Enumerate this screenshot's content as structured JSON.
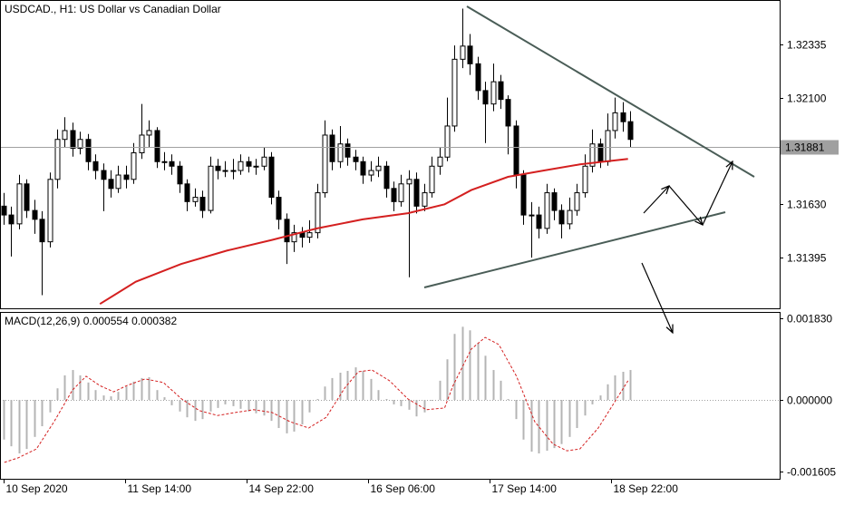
{
  "chart_data": [
    {
      "type": "candlestick",
      "title": "USDCAD., H1:  US Dollar vs Canadian Dollar",
      "up_color": "#ffffff",
      "down_color": "#000000",
      "wick_color": "#000000",
      "xlim": [
        -0.474,
        101.54
      ],
      "xticks": [
        {
          "value": 0,
          "label": "10 Sep 2020"
        },
        {
          "value": 15.9,
          "label": "11 Sep 14:00"
        },
        {
          "value": 31.8,
          "label": "14 Sep 22:00"
        },
        {
          "value": 47.7,
          "label": "16 Sep 06:00"
        },
        {
          "value": 63.6,
          "label": "17 Sep 14:00"
        },
        {
          "value": 79.5,
          "label": "18 Sep 22:00"
        }
      ],
      "ylim": [
        1.31172,
        1.32526
      ],
      "yticks": [
        1.32335,
        {
          "value": 1.321,
          "label": "1.32100"
        },
        {
          "value": 1.3163,
          "label": "1.31630"
        },
        1.31395
      ],
      "last_price": 1.31881,
      "last_price_color": "#a0a0a0",
      "candles": [
        [
          1.31622,
          1.3168,
          1.3154,
          1.31583
        ],
        [
          1.31583,
          1.3162,
          1.314,
          1.31544
        ],
        [
          1.31544,
          1.3176,
          1.3152,
          1.3172
        ],
        [
          1.3172,
          1.3174,
          1.3157,
          1.31603
        ],
        [
          1.31603,
          1.3165,
          1.315,
          1.31564
        ],
        [
          1.31564,
          1.316,
          1.3123,
          1.31465
        ],
        [
          1.31465,
          1.3177,
          1.3144,
          1.3174
        ],
        [
          1.3174,
          1.3196,
          1.317,
          1.31916
        ],
        [
          1.31916,
          1.32014,
          1.3188,
          1.31955
        ],
        [
          1.31955,
          1.3199,
          1.3184,
          1.31877
        ],
        [
          1.31877,
          1.3195,
          1.3185,
          1.31916
        ],
        [
          1.31916,
          1.3194,
          1.3178,
          1.31818
        ],
        [
          1.31818,
          1.3185,
          1.3174,
          1.31779
        ],
        [
          1.31779,
          1.3181,
          1.316,
          1.3174
        ],
        [
          1.3174,
          1.3178,
          1.3166,
          1.317
        ],
        [
          1.317,
          1.318,
          1.3168,
          1.31759
        ],
        [
          1.31759,
          1.318,
          1.317,
          1.3174
        ],
        [
          1.3174,
          1.319,
          1.3172,
          1.31857
        ],
        [
          1.31857,
          1.32072,
          1.3183,
          1.31935
        ],
        [
          1.31935,
          1.32,
          1.3188,
          1.31955
        ],
        [
          1.31955,
          1.3197,
          1.3179,
          1.31818
        ],
        [
          1.31818,
          1.3186,
          1.3178,
          1.31818
        ],
        [
          1.31818,
          1.3185,
          1.3176,
          1.31798
        ],
        [
          1.31798,
          1.3182,
          1.3168,
          1.3172
        ],
        [
          1.3172,
          1.3174,
          1.316,
          1.31642
        ],
        [
          1.31642,
          1.317,
          1.3162,
          1.31661
        ],
        [
          1.31661,
          1.3169,
          1.3157,
          1.31603
        ],
        [
          1.31603,
          1.3184,
          1.3159,
          1.31798
        ],
        [
          1.31798,
          1.3183,
          1.3174,
          1.31779
        ],
        [
          1.31779,
          1.3182,
          1.3175,
          1.31779
        ],
        [
          1.31779,
          1.3183,
          1.3174,
          1.31779
        ],
        [
          1.31779,
          1.3185,
          1.3176,
          1.31818
        ],
        [
          1.31818,
          1.3184,
          1.3177,
          1.31798
        ],
        [
          1.31798,
          1.3183,
          1.3176,
          1.31798
        ],
        [
          1.31798,
          1.3188,
          1.3178,
          1.31838
        ],
        [
          1.31838,
          1.3186,
          1.3163,
          1.31661
        ],
        [
          1.31661,
          1.3169,
          1.3152,
          1.31564
        ],
        [
          1.31564,
          1.3159,
          1.31367,
          1.31465
        ],
        [
          1.31465,
          1.3154,
          1.3142,
          1.31505
        ],
        [
          1.31505,
          1.3153,
          1.3144,
          1.31485
        ],
        [
          1.31485,
          1.3156,
          1.3146,
          1.31505
        ],
        [
          1.31505,
          1.3172,
          1.3148,
          1.31681
        ],
        [
          1.31681,
          1.32,
          1.3166,
          1.31935
        ],
        [
          1.31935,
          1.3196,
          1.3178,
          1.31818
        ],
        [
          1.31818,
          1.31975,
          1.3179,
          1.31896
        ],
        [
          1.31896,
          1.3192,
          1.318,
          1.31838
        ],
        [
          1.31838,
          1.3187,
          1.3178,
          1.31818
        ],
        [
          1.31818,
          1.3184,
          1.3172,
          1.31759
        ],
        [
          1.31759,
          1.3182,
          1.3173,
          1.31779
        ],
        [
          1.31779,
          1.3184,
          1.3175,
          1.31798
        ],
        [
          1.31798,
          1.3182,
          1.3166,
          1.317
        ],
        [
          1.317,
          1.3173,
          1.316,
          1.31642
        ],
        [
          1.31642,
          1.3176,
          1.3162,
          1.3172
        ],
        [
          1.3172,
          1.3178,
          1.31309,
          1.3174
        ],
        [
          1.3174,
          1.3177,
          1.3159,
          1.31622
        ],
        [
          1.31622,
          1.3172,
          1.316,
          1.31681
        ],
        [
          1.31681,
          1.3184,
          1.3166,
          1.31798
        ],
        [
          1.31798,
          1.3188,
          1.3176,
          1.31838
        ],
        [
          1.31838,
          1.321,
          1.3182,
          1.31975
        ],
        [
          1.31975,
          1.3233,
          1.3195,
          1.32269
        ],
        [
          1.32269,
          1.32492,
          1.3223,
          1.32327
        ],
        [
          1.32327,
          1.3238,
          1.322,
          1.32249
        ],
        [
          1.32249,
          1.3228,
          1.3209,
          1.32131
        ],
        [
          1.32131,
          1.3217,
          1.319,
          1.32072
        ],
        [
          1.32072,
          1.3225,
          1.3204,
          1.3217
        ],
        [
          1.3217,
          1.322,
          1.3205,
          1.32092
        ],
        [
          1.32092,
          1.3211,
          1.3185,
          1.31975
        ],
        [
          1.31975,
          1.32,
          1.317,
          1.31759
        ],
        [
          1.31759,
          1.3178,
          1.3154,
          1.31583
        ],
        [
          1.31583,
          1.3164,
          1.31395,
          1.31583
        ],
        [
          1.31583,
          1.3162,
          1.3148,
          1.31524
        ],
        [
          1.31524,
          1.3172,
          1.315,
          1.31681
        ],
        [
          1.31681,
          1.317,
          1.3156,
          1.31603
        ],
        [
          1.31603,
          1.3163,
          1.3148,
          1.31544
        ],
        [
          1.31544,
          1.3166,
          1.3152,
          1.31603
        ],
        [
          1.31603,
          1.3172,
          1.3158,
          1.31681
        ],
        [
          1.31681,
          1.3185,
          1.3166,
          1.31798
        ],
        [
          1.31798,
          1.3196,
          1.3177,
          1.31896
        ],
        [
          1.31896,
          1.3192,
          1.3179,
          1.31818
        ],
        [
          1.31818,
          1.3203,
          1.318,
          1.31955
        ],
        [
          1.31955,
          1.321,
          1.3192,
          1.32033
        ],
        [
          1.32033,
          1.3208,
          1.3195,
          1.31994
        ],
        [
          1.31994,
          1.3204,
          1.3188,
          1.31916
        ]
      ],
      "ma": {
        "color": "#d42020",
        "x": [
          12.6,
          17.3,
          23.2,
          29.2,
          35.1,
          41.0,
          47.0,
          52.9,
          57.7,
          61.2,
          66.0,
          70.7,
          75.4,
          81.7
        ],
        "values": [
          1.31191,
          1.31289,
          1.31367,
          1.31426,
          1.31473,
          1.31524,
          1.31564,
          1.31591,
          1.3163,
          1.31693,
          1.31751,
          1.31779,
          1.31806,
          1.3183
        ]
      }
    },
    {
      "type": "macd",
      "title": "MACD(12,26,9) 0.000554 0.000382",
      "color": "#b4b4b4",
      "xlim": [
        -0.474,
        101.54
      ],
      "ylim": [
        -0.001769,
        0.001952
      ],
      "yticks": [
        {
          "value": 0.00183,
          "label": "0.001830"
        },
        {
          "value": 0,
          "label": "0.000000"
        },
        {
          "value": -0.001605,
          "label": "-0.001605"
        }
      ],
      "zero_line": true,
      "values": [
        -0.00089,
        -0.00104,
        -0.0012,
        -0.0011,
        -0.00083,
        -0.00059,
        -0.00028,
        0.00026,
        0.00055,
        0.00067,
        0.00055,
        0.00039,
        0.00022,
        0.0001,
        8e-05,
        0.00018,
        0.0003,
        0.00041,
        0.00049,
        0.00051,
        0.00022,
        6e-05,
        -0.00012,
        -0.00026,
        -0.00039,
        -0.00047,
        -0.00043,
        -0.00026,
        -0.00018,
        -0.0001,
        -0.00014,
        -0.0002,
        -0.00026,
        -0.0003,
        -0.00035,
        -0.00047,
        -0.00063,
        -0.00075,
        -0.00071,
        -0.00055,
        -0.00028,
        2e-05,
        0.0003,
        0.00049,
        0.00061,
        0.00065,
        0.00073,
        0.00065,
        0.00047,
        0.00022,
        2e-05,
        -0.0001,
        -0.00014,
        -0.00022,
        -0.00037,
        -0.00028,
        -2e-05,
        0.00043,
        0.00091,
        0.00148,
        0.00164,
        0.00156,
        0.00128,
        0.00099,
        0.00067,
        0.00043,
        2e-05,
        -0.00043,
        -0.00089,
        -0.00116,
        -0.0012,
        -0.00114,
        -0.00108,
        -0.00099,
        -0.00083,
        -0.00063,
        -0.00035,
        -0.0001,
        0.0001,
        0.00035,
        0.00055,
        0.00063,
        0.00067
      ],
      "signal": {
        "color": "#d42020",
        "x": [
          0.1,
          1.9,
          4.3,
          6.6,
          9.0,
          10.8,
          12.6,
          14.4,
          16.1,
          18.5,
          20.9,
          23.3,
          25.6,
          28.0,
          30.4,
          32.7,
          35.1,
          37.5,
          39.9,
          42.2,
          44.6,
          46.4,
          48.2,
          50.5,
          52.9,
          55.3,
          57.7,
          58.8,
          61.2,
          63.0,
          64.8,
          67.1,
          69.5,
          71.9,
          73.7,
          75.4,
          77.8,
          80.2,
          81.7
        ],
        "values": [
          -0.0014,
          -0.0013,
          -0.0011,
          -0.00049,
          0.00022,
          0.00053,
          0.00032,
          0.00018,
          0.00032,
          0.00047,
          0.00039,
          2e-05,
          -0.00024,
          -0.00035,
          -0.00028,
          -0.00022,
          -0.00028,
          -0.00049,
          -0.00063,
          -0.00039,
          0.00026,
          0.00063,
          0.00067,
          0.00043,
          2e-05,
          -0.00022,
          -0.00018,
          0.00032,
          0.00114,
          0.0014,
          0.00124,
          0.00053,
          -0.00049,
          -0.00099,
          -0.00114,
          -0.0011,
          -0.00063,
          2e-05,
          0.00043
        ]
      }
    }
  ]
}
